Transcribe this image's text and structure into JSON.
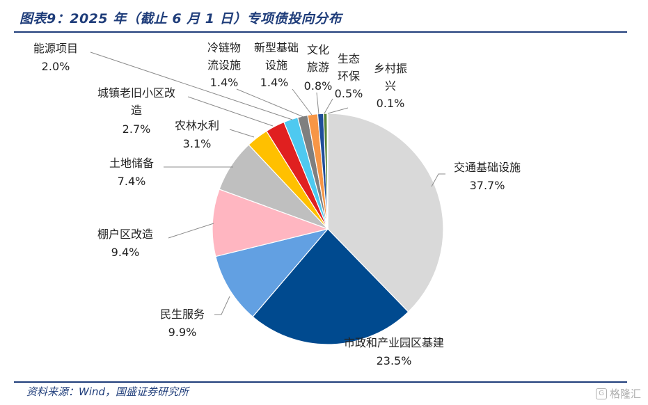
{
  "header": {
    "title": "图表9：2025 年（截止 6 月 1 日）专项债投向分布"
  },
  "footer": {
    "source": "资料来源：Wind，国盛证券研究所",
    "watermark": "格隆汇"
  },
  "chart_data": {
    "type": "pie",
    "title": "",
    "slices": [
      {
        "name": "交通基础设施",
        "value": 37.7,
        "label": "37.7%",
        "color": "#d9d9d9"
      },
      {
        "name": "市政和产业园区基建",
        "value": 23.5,
        "label": "23.5%",
        "color": "#004a8f"
      },
      {
        "name": "民生服务",
        "value": 9.9,
        "label": "9.9%",
        "color": "#62a0e2"
      },
      {
        "name": "棚户区改造",
        "value": 9.4,
        "label": "9.4%",
        "color": "#ffb6c1"
      },
      {
        "name": "土地储备",
        "value": 7.4,
        "label": "7.4%",
        "color": "#bfbfbf"
      },
      {
        "name": "农林水利",
        "value": 3.1,
        "label": "3.1%",
        "color": "#ffc000"
      },
      {
        "name": "城镇老旧小区改造",
        "value": 2.7,
        "label": "2.7%",
        "color": "#e02020"
      },
      {
        "name": "能源项目",
        "value": 2.0,
        "label": "2.0%",
        "color": "#4ec9f0"
      },
      {
        "name": "冷链物流设施",
        "value": 1.4,
        "label": "1.4%",
        "color": "#7f7f7f"
      },
      {
        "name": "新型基础设施",
        "value": 1.4,
        "label": "1.4%",
        "color": "#f79646"
      },
      {
        "name": "文化旅游",
        "value": 0.8,
        "label": "0.8%",
        "color": "#1f4e9a"
      },
      {
        "name": "生态环保",
        "value": 0.5,
        "label": "0.5%",
        "color": "#548235"
      },
      {
        "name": "乡村振兴",
        "value": 0.1,
        "label": "0.1%",
        "color": "#1a1a1a"
      }
    ]
  }
}
